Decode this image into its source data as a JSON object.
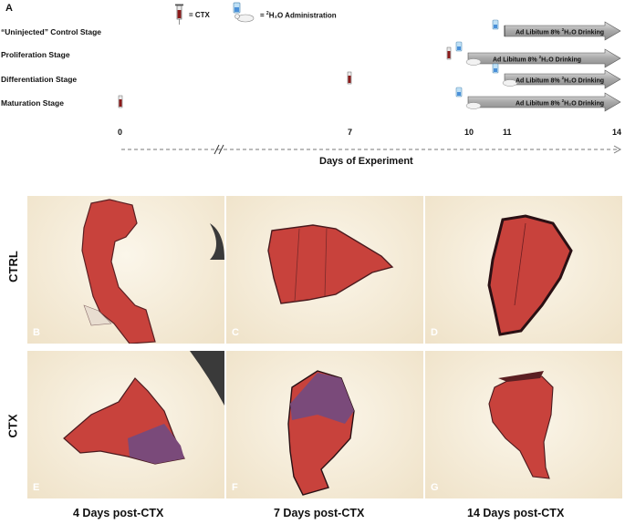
{
  "panel_a_label": "A",
  "legend": {
    "ctx_text": "= CTX",
    "water_prefix": "= ",
    "water_sup": "2",
    "water_suffix": "H₂O Administration",
    "syringe_icon": "syringe-icon",
    "mouse_icon": "mouse-with-bottle-icon"
  },
  "stages": [
    {
      "label": "“Uninjected” Control Stage"
    },
    {
      "label": "Proliferation Stage"
    },
    {
      "label": "Differentiation Stage"
    },
    {
      "label": "Maturation Stage"
    }
  ],
  "arrow_text": {
    "prefix": "Ad Libitum 8% ",
    "sup": "2",
    "suffix": "H₂O Drinking"
  },
  "axis": {
    "ticks": [
      "0",
      "7",
      "10",
      "11",
      "14"
    ],
    "label": "Days of Experiment"
  },
  "rows": [
    "CTRL",
    "CTX"
  ],
  "panels": [
    "B",
    "C",
    "D",
    "E",
    "F",
    "G"
  ],
  "columns": [
    "4 Days post-CTX",
    "7 Days post-CTX",
    "14 Days post-CTX"
  ],
  "colors": {
    "tissue_red": "#c8423c",
    "tissue_purple": "#7a4a7a",
    "background_slide": "#f4ead8",
    "arrow_grey": "#9a9a9a"
  }
}
